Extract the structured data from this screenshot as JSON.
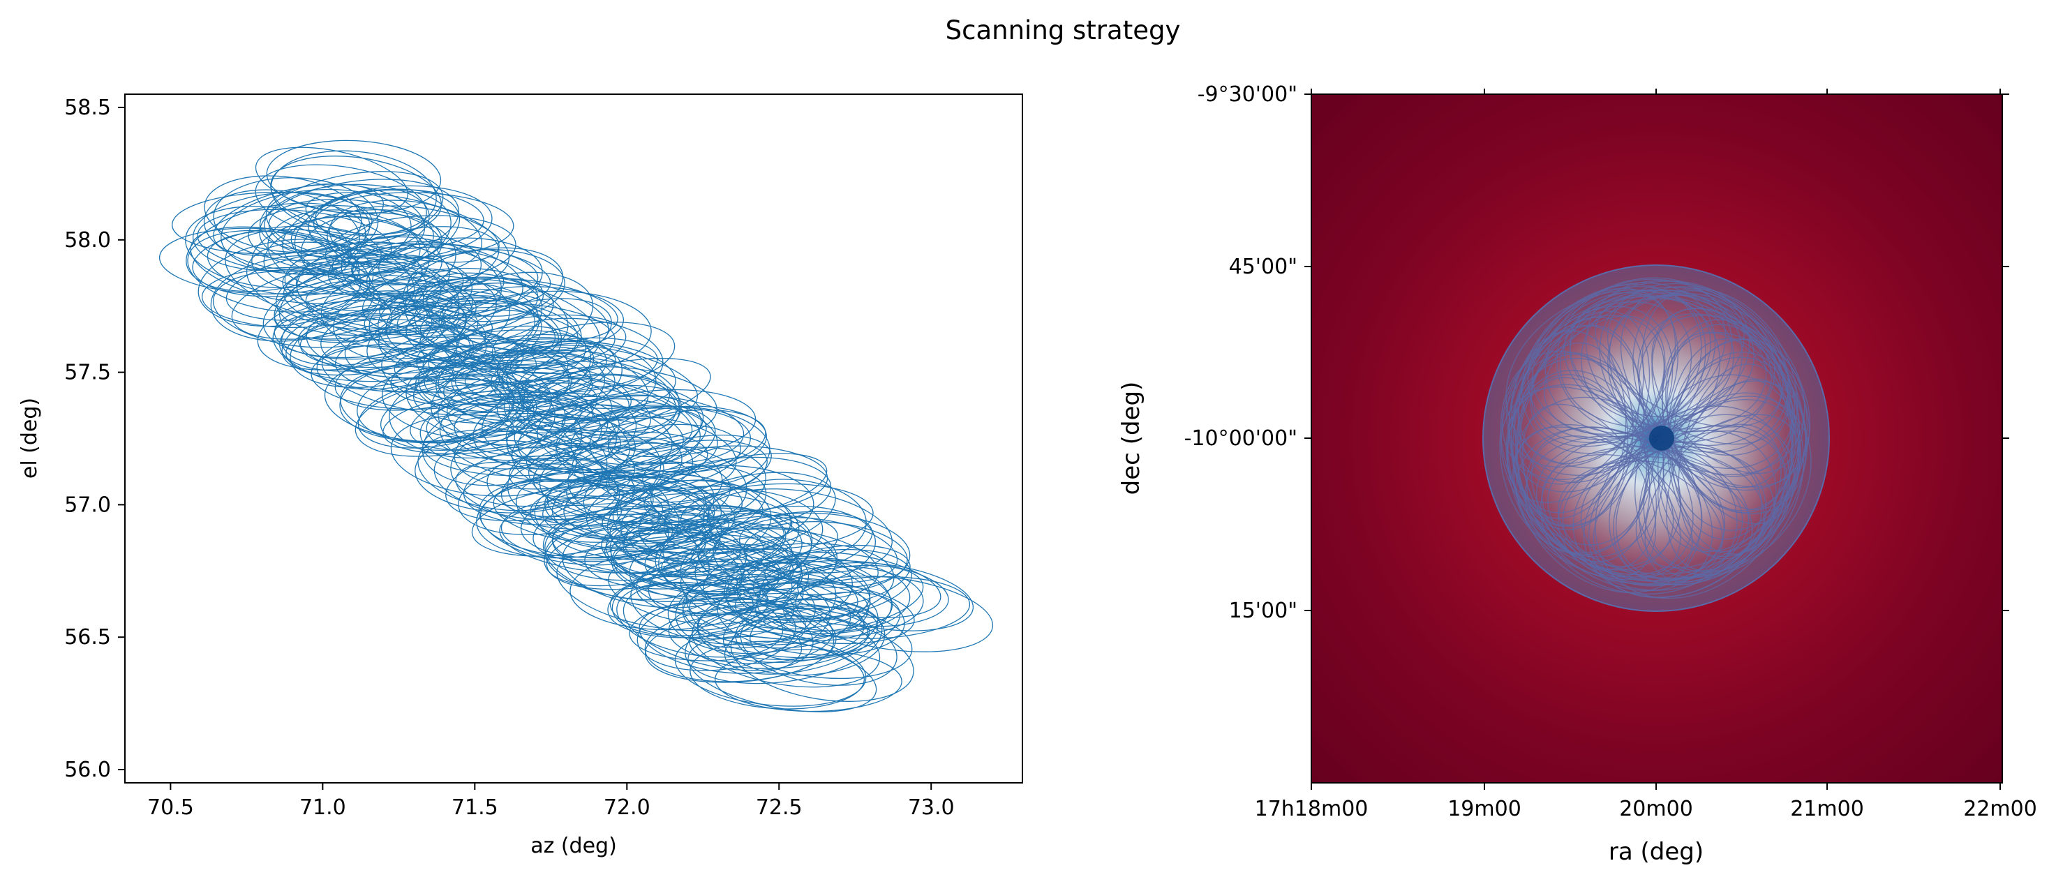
{
  "figure": {
    "title": "Scanning strategy"
  },
  "chart_data": [
    {
      "type": "line",
      "description_key": "az-el",
      "title": "",
      "xlabel": "az (deg)",
      "ylabel": "el (deg)",
      "xlim": [
        70.35,
        73.3
      ],
      "ylim": [
        55.95,
        58.55
      ],
      "x_ticks": [
        70.5,
        71.0,
        71.5,
        72.0,
        72.5,
        73.0
      ],
      "x_tick_labels": [
        "70.5",
        "71.0",
        "71.5",
        "72.0",
        "72.5",
        "73.0"
      ],
      "y_ticks": [
        56.0,
        56.5,
        57.0,
        57.5,
        58.0,
        58.5
      ],
      "y_tick_labels": [
        "56.0",
        "56.5",
        "57.0",
        "57.5",
        "58.0",
        "58.5"
      ],
      "series": [
        {
          "line_color": "#1f77b4",
          "pattern": "overlapping-ellipse-loops",
          "path_start": [
            70.9,
            58.1
          ],
          "path_end": [
            72.7,
            56.45
          ],
          "loop_count": 320,
          "loop_half_width_az": [
            0.25,
            0.33
          ],
          "loop_half_height_el": [
            0.11,
            0.16
          ]
        }
      ],
      "grid": false
    },
    {
      "type": "heatmap",
      "description_key": "ra-dec",
      "title": "",
      "xlabel": "ra (deg)",
      "ylabel": "dec (deg)",
      "x_tick_labels": [
        "17h18m00",
        "19m00",
        "20m00",
        "21m00",
        "22m00"
      ],
      "y_tick_labels": [
        "-9°30'00\"",
        "45'00\"",
        "-10°00'00\"",
        "15'00\""
      ],
      "colormap": "RdBu",
      "background_color": "#67001f",
      "center_color": "#084a8a",
      "scan_footprint": {
        "shape": "circle",
        "line_color": "#5b6aa8",
        "loop_count": 90
      },
      "grid": false
    }
  ]
}
